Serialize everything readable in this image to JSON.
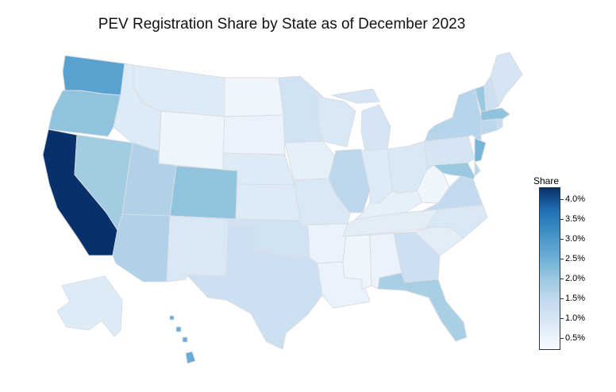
{
  "title": "PEV Registration Share by State as of December 2023",
  "legend": {
    "title": "Share",
    "ticks": [
      "4.0%",
      "3.5%",
      "3.0%",
      "2.5%",
      "2.0%",
      "1.5%",
      "1.0%",
      "0.5%"
    ],
    "tick_values": [
      4.0,
      3.5,
      3.0,
      2.5,
      2.0,
      1.5,
      1.0,
      0.5
    ],
    "range": [
      0.2,
      4.3
    ],
    "colors": [
      "#f7fbff",
      "#deebf7",
      "#c6dbef",
      "#9ecae1",
      "#6baed6",
      "#4292c6",
      "#2171b5",
      "#08306b"
    ]
  },
  "states": {
    "WA": 2.8,
    "OR": 2.1,
    "CA": 4.3,
    "NV": 1.9,
    "ID": 0.8,
    "MT": 0.8,
    "WY": 0.4,
    "UT": 1.7,
    "AZ": 1.7,
    "CO": 2.1,
    "NM": 0.9,
    "ND": 0.4,
    "SD": 0.5,
    "NE": 0.8,
    "KS": 0.8,
    "OK": 1.1,
    "TX": 1.2,
    "MN": 1.1,
    "IA": 0.6,
    "MO": 0.9,
    "AR": 0.5,
    "LA": 0.5,
    "WI": 0.9,
    "IL": 1.5,
    "MI": 1.0,
    "IN": 0.8,
    "OH": 0.9,
    "KY": 0.6,
    "TN": 0.7,
    "MS": 0.4,
    "AL": 0.5,
    "GA": 1.2,
    "FL": 1.8,
    "SC": 0.7,
    "NC": 0.9,
    "VA": 1.4,
    "WV": 0.4,
    "PA": 1.0,
    "NY": 1.6,
    "VT": 2.0,
    "NH": 1.2,
    "ME": 1.0,
    "MA": 2.1,
    "RI": 1.3,
    "CT": 1.5,
    "NJ": 2.4,
    "DE": 1.6,
    "MD": 2.0,
    "AK": 0.8,
    "HI": 2.6
  }
}
